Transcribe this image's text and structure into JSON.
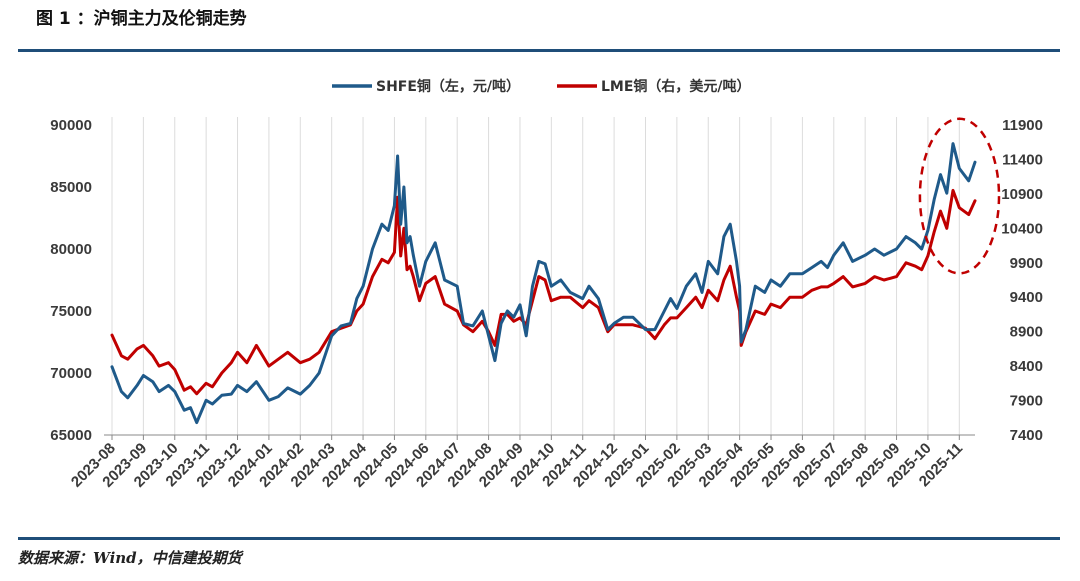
{
  "figure_title": "图 1 ：沪铜主力及伦铜走势",
  "source_note": "数据来源：Wind，中信建投期货",
  "chart_data": {
    "type": "line",
    "title": "",
    "legend_position": "top-center",
    "grid": "vertical",
    "x_categories": [
      "2023-08",
      "2023-09",
      "2023-10",
      "2023-11",
      "2023-12",
      "2024-01",
      "2024-02",
      "2024-03",
      "2024-04",
      "2024-05",
      "2024-06",
      "2024-07",
      "2024-08",
      "2024-09",
      "2024-10",
      "2024-11",
      "2024-12",
      "2025-01",
      "2025-02",
      "2025-03",
      "2025-04",
      "2025-05",
      "2025-06",
      "2025-07",
      "2025-08",
      "2025-09",
      "2025-10",
      "2025-11"
    ],
    "y_left": {
      "min": 65000,
      "max": 90000,
      "ticks": [
        "90000",
        "85000",
        "80000",
        "75000",
        "70000",
        "65000"
      ]
    },
    "y_right": {
      "min": 7400,
      "max": 11900,
      "ticks": [
        "11900",
        "11400",
        "10900",
        "10400",
        "9900",
        "9400",
        "8900",
        "8400",
        "7900",
        "7400"
      ]
    },
    "series": [
      {
        "name": "SHFE铜（左，元/吨）",
        "axis": "left",
        "color": "#1f5a8a",
        "x": [
          0,
          0.3,
          0.5,
          0.8,
          1.0,
          1.3,
          1.5,
          1.8,
          2.0,
          2.3,
          2.5,
          2.7,
          3.0,
          3.2,
          3.5,
          3.8,
          4.0,
          4.3,
          4.6,
          5.0,
          5.3,
          5.6,
          6.0,
          6.3,
          6.6,
          7.0,
          7.3,
          7.6,
          7.8,
          8.0,
          8.3,
          8.6,
          8.8,
          9.0,
          9.1,
          9.2,
          9.3,
          9.4,
          9.5,
          9.6,
          9.8,
          10.0,
          10.3,
          10.6,
          11.0,
          11.2,
          11.5,
          11.8,
          12.0,
          12.2,
          12.4,
          12.6,
          12.8,
          13.0,
          13.2,
          13.4,
          13.6,
          13.8,
          14.0,
          14.3,
          14.6,
          15.0,
          15.2,
          15.5,
          15.8,
          16.0,
          16.3,
          16.6,
          17.0,
          17.3,
          17.6,
          17.8,
          18.0,
          18.3,
          18.6,
          18.8,
          19.0,
          19.3,
          19.5,
          19.7,
          19.9,
          20.0,
          20.05,
          20.2,
          20.5,
          20.8,
          21.0,
          21.3,
          21.6,
          22.0,
          22.3,
          22.6,
          22.8,
          23.0,
          23.3,
          23.6,
          24.0,
          24.3,
          24.6,
          25.0,
          25.3,
          25.6,
          25.8,
          26.0,
          26.2,
          26.4,
          26.6,
          26.8,
          27.0,
          27.3,
          27.5
        ],
        "values": [
          70500,
          68500,
          68000,
          69000,
          69800,
          69300,
          68500,
          69000,
          68500,
          67000,
          67200,
          66000,
          67800,
          67500,
          68200,
          68300,
          69000,
          68500,
          69300,
          67800,
          68100,
          68800,
          68300,
          69000,
          70000,
          73000,
          73800,
          74000,
          76000,
          77000,
          80000,
          82000,
          81500,
          83500,
          87500,
          82000,
          85000,
          80500,
          81000,
          79500,
          77000,
          79000,
          80500,
          77500,
          77000,
          74000,
          73800,
          75000,
          73000,
          71000,
          74000,
          75000,
          74500,
          75500,
          73000,
          77000,
          79000,
          78800,
          77000,
          77500,
          76500,
          76000,
          77000,
          76000,
          73500,
          74000,
          74500,
          74500,
          73500,
          73500,
          75000,
          76000,
          75200,
          77000,
          78000,
          76500,
          79000,
          78000,
          81000,
          82000,
          79000,
          77000,
          72500,
          73500,
          77000,
          76500,
          77500,
          77000,
          78000,
          78000,
          78500,
          79000,
          78500,
          79500,
          80500,
          79000,
          79500,
          80000,
          79500,
          80000,
          81000,
          80500,
          80000,
          81500,
          84000,
          86000,
          84500,
          88500,
          86500,
          85500,
          87000
        ]
      },
      {
        "name": "LME铜（右，美元/吨）",
        "axis": "right",
        "color": "#c00000",
        "x": [
          0,
          0.3,
          0.5,
          0.8,
          1.0,
          1.3,
          1.5,
          1.8,
          2.0,
          2.3,
          2.5,
          2.7,
          3.0,
          3.2,
          3.5,
          3.8,
          4.0,
          4.3,
          4.6,
          5.0,
          5.3,
          5.6,
          6.0,
          6.3,
          6.6,
          7.0,
          7.3,
          7.6,
          7.8,
          8.0,
          8.3,
          8.6,
          8.8,
          9.0,
          9.1,
          9.2,
          9.3,
          9.4,
          9.5,
          9.6,
          9.8,
          10.0,
          10.3,
          10.6,
          11.0,
          11.2,
          11.5,
          11.8,
          12.0,
          12.2,
          12.4,
          12.6,
          12.8,
          13.0,
          13.2,
          13.4,
          13.6,
          13.8,
          14.0,
          14.3,
          14.6,
          15.0,
          15.2,
          15.5,
          15.8,
          16.0,
          16.3,
          16.6,
          17.0,
          17.3,
          17.6,
          17.8,
          18.0,
          18.3,
          18.6,
          18.8,
          19.0,
          19.3,
          19.5,
          19.7,
          19.9,
          20.0,
          20.05,
          20.2,
          20.5,
          20.8,
          21.0,
          21.3,
          21.6,
          22.0,
          22.3,
          22.6,
          22.8,
          23.0,
          23.3,
          23.6,
          24.0,
          24.3,
          24.6,
          25.0,
          25.3,
          25.6,
          25.8,
          26.0,
          26.2,
          26.4,
          26.6,
          26.8,
          27.0,
          27.3,
          27.5
        ],
        "values": [
          8850,
          8550,
          8500,
          8650,
          8700,
          8550,
          8400,
          8450,
          8350,
          8050,
          8100,
          8000,
          8150,
          8100,
          8300,
          8450,
          8600,
          8450,
          8700,
          8400,
          8500,
          8600,
          8450,
          8500,
          8600,
          8900,
          8950,
          9000,
          9200,
          9300,
          9700,
          9950,
          9900,
          10050,
          10850,
          10000,
          10400,
          9800,
          9850,
          9700,
          9350,
          9600,
          9700,
          9300,
          9200,
          9000,
          8900,
          9050,
          8900,
          8700,
          9150,
          9150,
          9050,
          9100,
          9000,
          9350,
          9700,
          9650,
          9350,
          9400,
          9400,
          9250,
          9350,
          9250,
          8900,
          9000,
          9000,
          9000,
          8950,
          8800,
          9000,
          9100,
          9100,
          9250,
          9400,
          9250,
          9500,
          9350,
          9650,
          9850,
          9400,
          9200,
          8700,
          8900,
          9200,
          9150,
          9300,
          9250,
          9400,
          9400,
          9500,
          9550,
          9550,
          9600,
          9700,
          9550,
          9600,
          9700,
          9650,
          9700,
          9900,
          9850,
          9800,
          10000,
          10350,
          10650,
          10400,
          10950,
          10700,
          10600,
          10800
        ]
      }
    ],
    "annotation": {
      "shape": "dashed-ellipse",
      "color": "#c00000"
    }
  }
}
